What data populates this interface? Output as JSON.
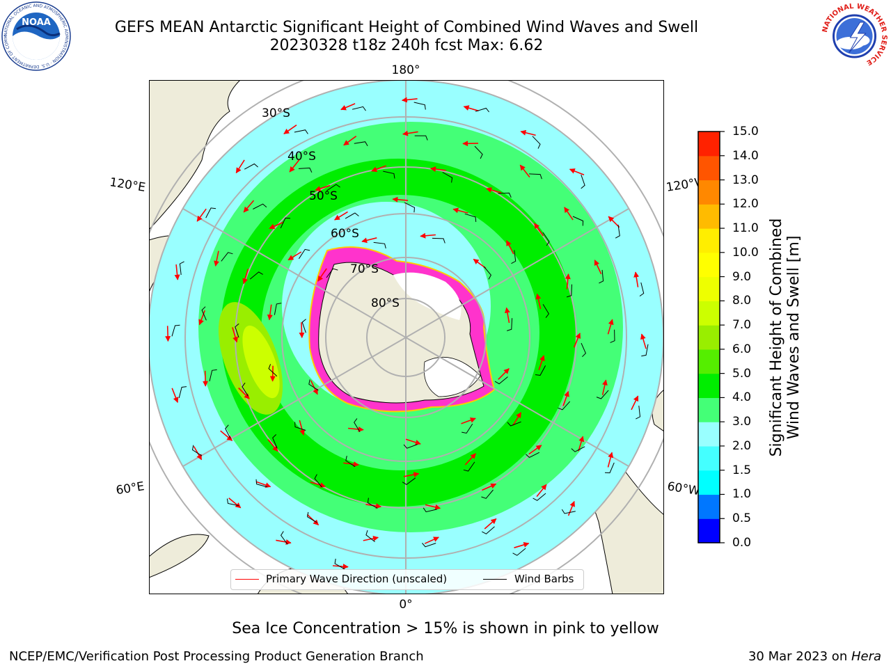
{
  "title": {
    "line1": "GEFS MEAN Antarctic Significant Height of Combined Wind Waves and Swell",
    "line2": "20230328 t18z 240h fcst   Max: 6.62"
  },
  "logos": {
    "noaa": {
      "text": "NOAA",
      "ring_text": "NATIONAL OCEANIC AND ATMOSPHERIC ADMINISTRATION · U.S. DEPARTMENT OF COMMERCE",
      "icon": "noaa-logo"
    },
    "nws": {
      "ring_text": "NATIONAL WEATHER SERVICE",
      "icon": "nws-logo"
    }
  },
  "map": {
    "projection": "south-polar-stereographic",
    "longitude_labels": {
      "top": "180°",
      "bottom": "0°",
      "left_upper": "120°E",
      "left_lower": "60°E",
      "right_upper": "120°W",
      "right_lower": "60°W"
    },
    "latitude_labels": [
      "30°S",
      "40°S",
      "50°S",
      "60°S",
      "70°S",
      "80°S"
    ],
    "colors": {
      "land": "#eeecda",
      "ice_free_land": "#ffffff",
      "sea_ice_edge": "#ff33cc",
      "wave_arrow": "#ff0000",
      "wind_barb": "#000000",
      "gridline": "#b0b0b0"
    }
  },
  "colorbar": {
    "title_line1": "Significant Height of Combined",
    "title_line2": "Wind Waves and Swell [m]",
    "ticks": [
      "15.0",
      "14.0",
      "13.0",
      "12.0",
      "11.0",
      "10.0",
      "9.0",
      "8.0",
      "7.0",
      "6.0",
      "5.0",
      "4.0",
      "3.0",
      "2.0",
      "1.5",
      "1.0",
      "0.5",
      "0.0"
    ],
    "colors": [
      "#0000ff",
      "#0077ff",
      "#00ffff",
      "#44ffff",
      "#99ffff",
      "#44ff77",
      "#00ee00",
      "#55ee00",
      "#99ee00",
      "#ccff00",
      "#eeff00",
      "#ffff00",
      "#ffee00",
      "#ffbb00",
      "#ff8800",
      "#ff5500",
      "#ff2200"
    ]
  },
  "legend": {
    "wave_label": "Primary Wave Direction (unscaled)",
    "wind_label": "Wind Barbs"
  },
  "caption": "Sea Ice Concentration > 15% is shown in pink to yellow",
  "footer": {
    "left": "NCEP/EMC/Verification Post Processing Product Generation Branch",
    "right_prefix": "30 Mar 2023 on ",
    "right_system": "Hera"
  }
}
